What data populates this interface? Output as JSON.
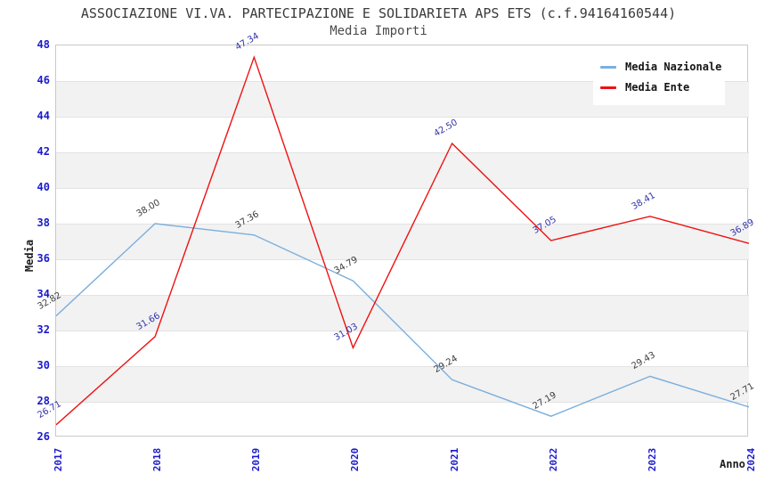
{
  "chart_data": {
    "type": "line",
    "title": "ASSOCIAZIONE VI.VA. PARTECIPAZIONE E SOLIDARIETA APS ETS (c.f.94164160544)",
    "subtitle": "Media Importi",
    "xlabel": "Anno",
    "ylabel": "Media",
    "categories": [
      "2017",
      "2018",
      "2019",
      "2020",
      "2021",
      "2022",
      "2023",
      "2024"
    ],
    "series": [
      {
        "name": "Media Nazionale",
        "color": "#7aafdd",
        "label_color": "#3d3d3d",
        "values": [
          32.82,
          38.0,
          37.36,
          34.79,
          29.24,
          27.19,
          29.43,
          27.71
        ]
      },
      {
        "name": "Media Ente",
        "color": "#ee1111",
        "label_color": "#3333aa",
        "values": [
          26.71,
          31.66,
          47.34,
          31.03,
          42.5,
          37.05,
          38.41,
          36.89
        ]
      }
    ],
    "ylim": [
      26,
      48
    ],
    "ytick_step": 2,
    "yticks": [
      26,
      28,
      30,
      32,
      34,
      36,
      38,
      40,
      42,
      44,
      46,
      48
    ],
    "tick_color": "#1a1acc",
    "band_color": "#f2f2f2",
    "grid": "horizontal-bands",
    "legend_position": "top-right",
    "value_label_decimals": 2
  }
}
